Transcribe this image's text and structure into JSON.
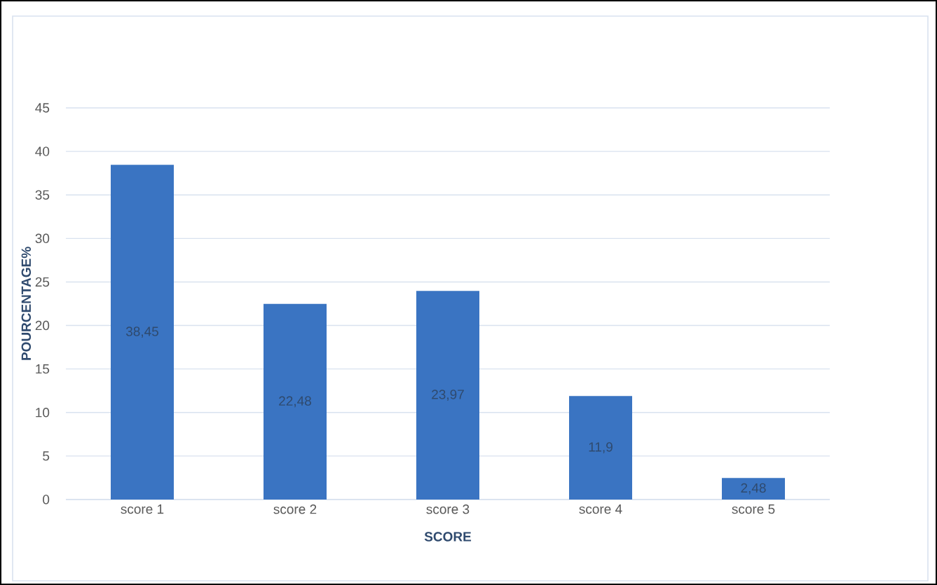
{
  "chart_data": {
    "type": "bar",
    "xlabel": "SCORE",
    "ylabel": "POURCENTAGE%",
    "categories": [
      "score 1",
      "score 2",
      "score 3",
      "score 4",
      "score 5"
    ],
    "values": [
      38.45,
      22.48,
      23.97,
      11.9,
      2.48
    ],
    "value_labels": [
      "38,45",
      "22,48",
      "23,97",
      "11,9",
      "2,48"
    ],
    "color": "#3a74c2",
    "ylim": [
      0,
      45
    ],
    "yticks": [
      0,
      5,
      10,
      15,
      20,
      25,
      30,
      35,
      40,
      45
    ],
    "grid": "y"
  }
}
